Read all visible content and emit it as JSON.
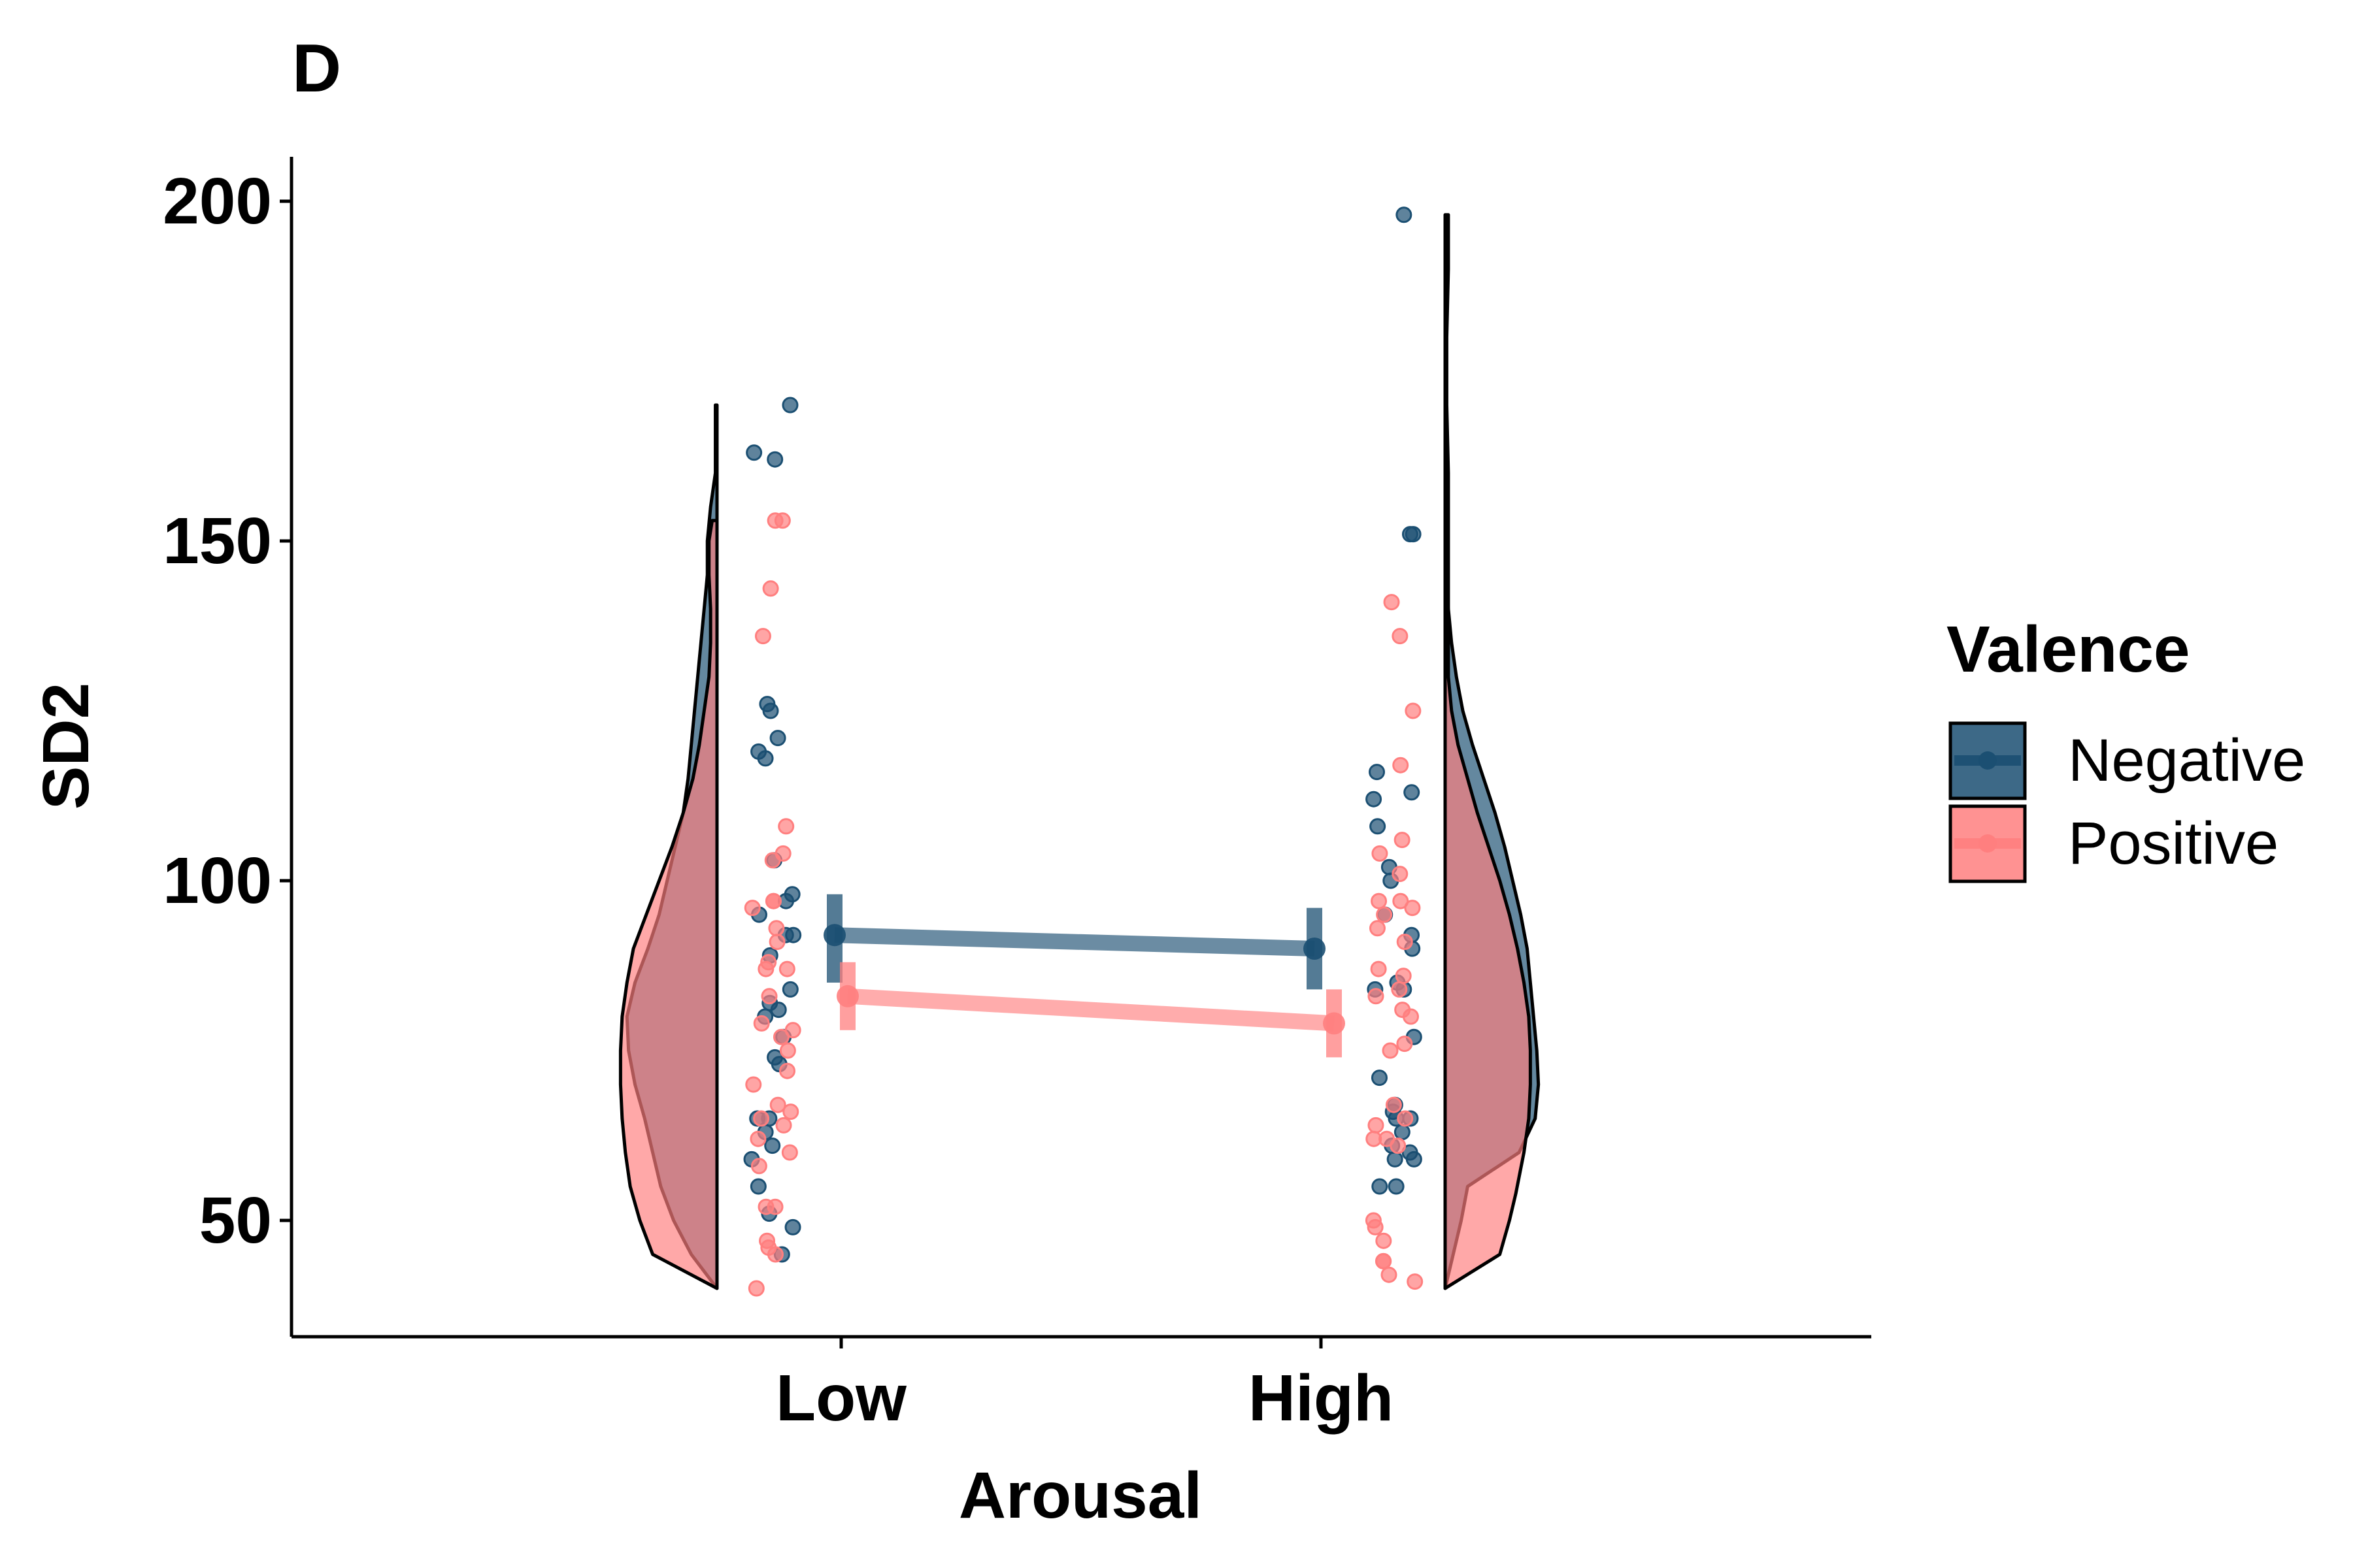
{
  "panel_label": "D",
  "chart_data": {
    "type": "raincloud",
    "title": "",
    "xlabel": "Arousal",
    "ylabel": "SD2",
    "categories": [
      "Low",
      "High"
    ],
    "y_ticks": [
      50,
      100,
      150,
      200
    ],
    "ylim": [
      32,
      207
    ],
    "grid": false,
    "legend": {
      "title": "Valence",
      "placement": "right",
      "entries": [
        {
          "name": "Negative",
          "color": "#1b4f72"
        },
        {
          "name": "Positive",
          "color": "#ff7f7f"
        }
      ]
    },
    "series": [
      {
        "name": "Negative",
        "color": "#1b4f72",
        "means": [
          {
            "category": "Low",
            "mean": 92,
            "ci": [
              85,
              98
            ]
          },
          {
            "category": "High",
            "mean": 90,
            "ci": [
              84,
              96
            ]
          }
        ],
        "violins": [
          {
            "category": "Low",
            "side": "left",
            "profile": [
              [
                40,
                0.0
              ],
              [
                45,
                0.16
              ],
              [
                50,
                0.27
              ],
              [
                55,
                0.35
              ],
              [
                60,
                0.4
              ],
              [
                65,
                0.45
              ],
              [
                70,
                0.51
              ],
              [
                75,
                0.55
              ],
              [
                80,
                0.56
              ],
              [
                85,
                0.51
              ],
              [
                90,
                0.43
              ],
              [
                95,
                0.36
              ],
              [
                100,
                0.31
              ],
              [
                105,
                0.26
              ],
              [
                110,
                0.21
              ],
              [
                115,
                0.18
              ],
              [
                120,
                0.16
              ],
              [
                125,
                0.14
              ],
              [
                130,
                0.12
              ],
              [
                135,
                0.1
              ],
              [
                140,
                0.08
              ],
              [
                145,
                0.06
              ],
              [
                150,
                0.06
              ],
              [
                155,
                0.04
              ],
              [
                160,
                0.01
              ],
              [
                165,
                0.01
              ],
              [
                170,
                0.01
              ]
            ]
          },
          {
            "category": "High",
            "side": "right",
            "profile": [
              [
                40,
                0.0
              ],
              [
                45,
                0.05
              ],
              [
                50,
                0.1
              ],
              [
                55,
                0.14
              ],
              [
                60,
                0.46
              ],
              [
                65,
                0.56
              ],
              [
                70,
                0.58
              ],
              [
                75,
                0.57
              ],
              [
                80,
                0.55
              ],
              [
                85,
                0.53
              ],
              [
                90,
                0.51
              ],
              [
                95,
                0.47
              ],
              [
                100,
                0.42
              ],
              [
                105,
                0.37
              ],
              [
                110,
                0.31
              ],
              [
                115,
                0.24
              ],
              [
                120,
                0.17
              ],
              [
                125,
                0.11
              ],
              [
                130,
                0.07
              ],
              [
                135,
                0.04
              ],
              [
                140,
                0.02
              ],
              [
                150,
                0.02
              ],
              [
                160,
                0.02
              ],
              [
                170,
                0.01
              ],
              [
                180,
                0.01
              ],
              [
                190,
                0.02
              ],
              [
                198,
                0.02
              ]
            ]
          }
        ],
        "points": [
          {
            "category": "Low",
            "values": [
              170,
              163,
              162,
              126,
              125,
              121,
              119,
              118,
              103,
              98,
              97,
              95,
              92,
              92,
              89,
              84,
              82,
              81,
              80,
              77,
              74,
              73,
              65,
              65,
              63,
              61,
              59,
              55,
              51,
              49,
              45
            ]
          },
          {
            "category": "High",
            "values": [
              198,
              151,
              151,
              116,
              113,
              112,
              108,
              102,
              100,
              95,
              92,
              90,
              85,
              84,
              84,
              77,
              71,
              67,
              66,
              65,
              65,
              63,
              61,
              60,
              59,
              59,
              55,
              55
            ]
          }
        ]
      },
      {
        "name": "Positive",
        "color": "#ff7f7f",
        "means": [
          {
            "category": "Low",
            "mean": 83,
            "ci": [
              78,
              88
            ]
          },
          {
            "category": "High",
            "mean": 79,
            "ci": [
              74,
              84
            ]
          }
        ],
        "violins": [
          {
            "category": "Low",
            "side": "left",
            "profile": [
              [
                40,
                0.0
              ],
              [
                45,
                0.4
              ],
              [
                50,
                0.48
              ],
              [
                55,
                0.54
              ],
              [
                60,
                0.57
              ],
              [
                65,
                0.59
              ],
              [
                70,
                0.6
              ],
              [
                75,
                0.6
              ],
              [
                80,
                0.59
              ],
              [
                85,
                0.56
              ],
              [
                90,
                0.52
              ],
              [
                95,
                0.44
              ],
              [
                100,
                0.36
              ],
              [
                105,
                0.28
              ],
              [
                110,
                0.21
              ],
              [
                115,
                0.15
              ],
              [
                120,
                0.11
              ],
              [
                125,
                0.08
              ],
              [
                130,
                0.05
              ],
              [
                135,
                0.04
              ],
              [
                140,
                0.04
              ],
              [
                145,
                0.05
              ],
              [
                150,
                0.05
              ],
              [
                153,
                0.03
              ]
            ]
          },
          {
            "category": "High",
            "side": "right",
            "profile": [
              [
                40,
                0.0
              ],
              [
                45,
                0.34
              ],
              [
                50,
                0.4
              ],
              [
                54,
                0.44
              ],
              [
                60,
                0.49
              ],
              [
                65,
                0.52
              ],
              [
                70,
                0.53
              ],
              [
                75,
                0.53
              ],
              [
                80,
                0.52
              ],
              [
                85,
                0.49
              ],
              [
                90,
                0.45
              ],
              [
                95,
                0.4
              ],
              [
                100,
                0.34
              ],
              [
                105,
                0.27
              ],
              [
                110,
                0.2
              ],
              [
                115,
                0.14
              ],
              [
                120,
                0.08
              ],
              [
                125,
                0.04
              ],
              [
                130,
                0.02
              ],
              [
                135,
                0.02
              ],
              [
                140,
                0.02
              ]
            ]
          }
        ],
        "points": [
          {
            "category": "Low",
            "values": [
              153,
              153,
              143,
              136,
              108,
              104,
              103,
              97,
              97,
              96,
              93,
              91,
              88,
              87,
              87,
              83,
              79,
              78,
              77,
              75,
              72,
              70,
              67,
              66,
              65,
              64,
              62,
              60,
              58,
              52,
              52,
              47,
              46,
              45,
              40
            ]
          },
          {
            "category": "High",
            "values": [
              141,
              136,
              125,
              117,
              106,
              104,
              101,
              97,
              97,
              96,
              95,
              93,
              91,
              87,
              86,
              84,
              83,
              81,
              80,
              76,
              75,
              67,
              65,
              64,
              62,
              62,
              61,
              50,
              49,
              47,
              44,
              44,
              42,
              41
            ]
          }
        ]
      }
    ]
  }
}
